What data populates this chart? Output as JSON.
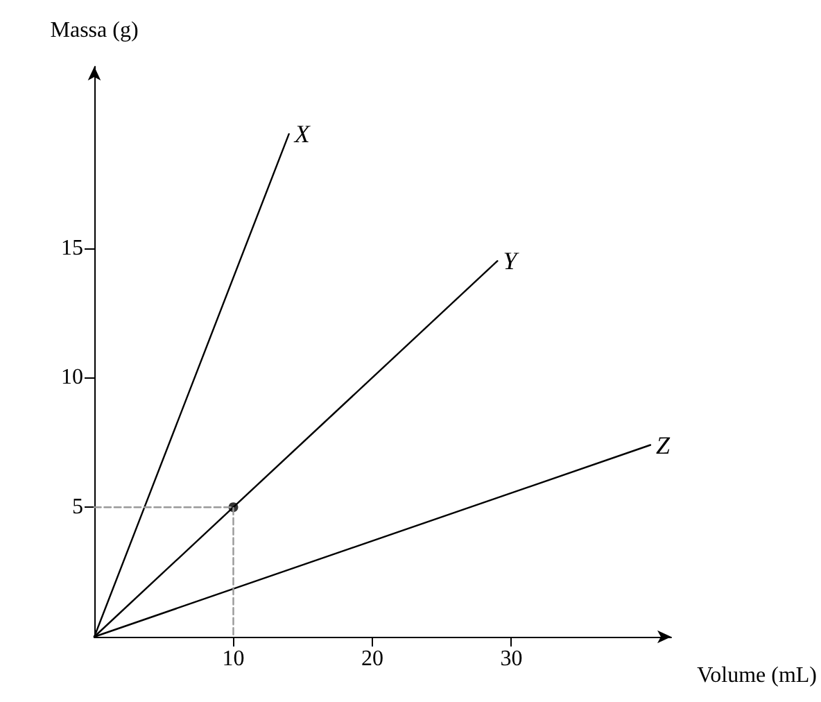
{
  "chart_data": {
    "type": "line",
    "xlabel": "Volume (mL)",
    "ylabel": "Massa (g)",
    "xlim": [
      0,
      41.5
    ],
    "ylim": [
      0,
      22
    ],
    "xticks": [
      10,
      20,
      30
    ],
    "yticks": [
      5,
      10,
      15
    ],
    "series": [
      {
        "name": "X",
        "color": "#000000",
        "x": [
          0,
          14
        ],
        "values": [
          0,
          19.4
        ]
      },
      {
        "name": "Y",
        "color": "#000000",
        "x": [
          0,
          29
        ],
        "values": [
          0,
          14.5
        ]
      },
      {
        "name": "Z",
        "color": "#000000",
        "x": [
          0,
          40
        ],
        "values": [
          0,
          7.4
        ]
      },
      {
        "color": "#999999",
        "x": [
          0,
          10,
          10
        ],
        "values": [
          5,
          5,
          0
        ],
        "line_style": "dashed"
      },
      {
        "type": "scatter",
        "color": "#000000",
        "x": [
          10
        ],
        "values": [
          5
        ],
        "marker": "circle"
      }
    ],
    "grid": false,
    "legend": false,
    "marker": "none",
    "line_style": "solid"
  }
}
